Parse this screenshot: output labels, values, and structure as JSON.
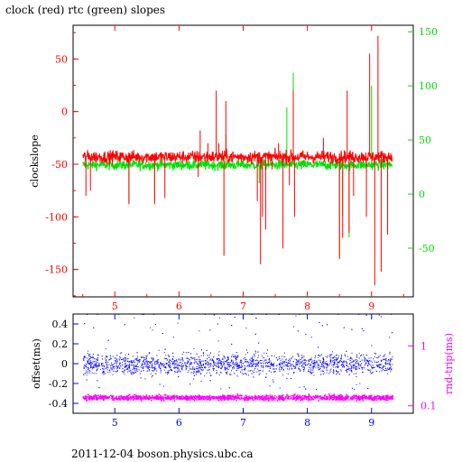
{
  "title": "clock (red) rtc (green) slopes",
  "footer": "2011-12-04 boson.physics.ubc.ca",
  "chart_data": [
    {
      "type": "line",
      "xlim": [
        4.35,
        9.65
      ],
      "x_ticks": [
        "5",
        "6",
        "7",
        "8",
        "9"
      ],
      "ylabel": "clockslope",
      "ylim": [
        -176,
        82
      ],
      "y_ticks": [
        "50",
        "0",
        "-50",
        "-100",
        "-150"
      ],
      "y2lim": [
        -95,
        156
      ],
      "y2_ticks": [
        "150",
        "100",
        "50",
        "0",
        "-50"
      ],
      "colors": {
        "clock": "#ff0000",
        "rtc": "#00dd00",
        "axis_left": "#ff0000",
        "axis_right": "#00dd00"
      },
      "series": [
        {
          "name": "clock",
          "x_range": [
            4.5,
            9.32
          ],
          "baseline": -43,
          "band": [
            -52,
            -33
          ],
          "spikes": [
            [
              4.55,
              -80
            ],
            [
              4.62,
              -75
            ],
            [
              5.22,
              -88
            ],
            [
              5.62,
              -88
            ],
            [
              5.78,
              -82
            ],
            [
              6.3,
              -62
            ],
            [
              6.33,
              -18
            ],
            [
              6.45,
              -30
            ],
            [
              6.58,
              20
            ],
            [
              6.62,
              -30
            ],
            [
              6.7,
              -137
            ],
            [
              6.73,
              10
            ],
            [
              7.22,
              -85
            ],
            [
              7.27,
              -145
            ],
            [
              7.3,
              -100
            ],
            [
              7.35,
              -112
            ],
            [
              7.45,
              -55
            ],
            [
              7.55,
              -30
            ],
            [
              7.62,
              -130
            ],
            [
              7.72,
              -70
            ],
            [
              7.78,
              20
            ],
            [
              7.8,
              -100
            ],
            [
              8.25,
              -25
            ],
            [
              8.5,
              -140
            ],
            [
              8.55,
              -120
            ],
            [
              8.62,
              20
            ],
            [
              8.65,
              -115
            ],
            [
              8.72,
              -80
            ],
            [
              8.92,
              -100
            ],
            [
              8.97,
              55
            ],
            [
              9.05,
              -165
            ],
            [
              9.1,
              72
            ],
            [
              9.15,
              -152
            ],
            [
              9.25,
              -117
            ]
          ]
        },
        {
          "name": "rtc",
          "x_range": [
            4.5,
            9.32
          ],
          "baseline": 27,
          "band": [
            20,
            35
          ],
          "spikes": [
            [
              5.22,
              -8
            ],
            [
              5.62,
              -8
            ],
            [
              6.33,
              30
            ],
            [
              6.73,
              55
            ],
            [
              7.25,
              10
            ],
            [
              7.68,
              80
            ],
            [
              7.78,
              112
            ],
            [
              8.5,
              -58
            ],
            [
              8.55,
              -20
            ],
            [
              8.65,
              -40
            ],
            [
              9.0,
              100
            ]
          ]
        }
      ]
    },
    {
      "type": "scatter",
      "xlim": [
        4.35,
        9.65
      ],
      "x_ticks": [
        "5",
        "6",
        "7",
        "8",
        "9"
      ],
      "ylabel": "offset(ms)",
      "ylim": [
        -0.5,
        0.5
      ],
      "y_ticks": [
        "0.4",
        "0.2",
        "0",
        "-0.2",
        "-0.4"
      ],
      "y2label": "rnd-trip(ms)",
      "y2_scale": "log",
      "y2lim": [
        0.075,
        3.4
      ],
      "y2_ticks": [
        "1",
        "0.1"
      ],
      "colors": {
        "offset": "#0000ff",
        "rnd_trip": "#ff00ff",
        "axis_left": "#0000ff",
        "axis_right": "#ff00ff"
      },
      "series": [
        {
          "name": "offset",
          "x_range": [
            4.5,
            9.32
          ],
          "center": 0.0,
          "spread": 0.1,
          "max": 0.5,
          "min": -0.5
        },
        {
          "name": "rnd-trip",
          "x_range": [
            4.5,
            9.32
          ],
          "center": 0.14,
          "spread_log10": 0.04
        }
      ]
    }
  ]
}
